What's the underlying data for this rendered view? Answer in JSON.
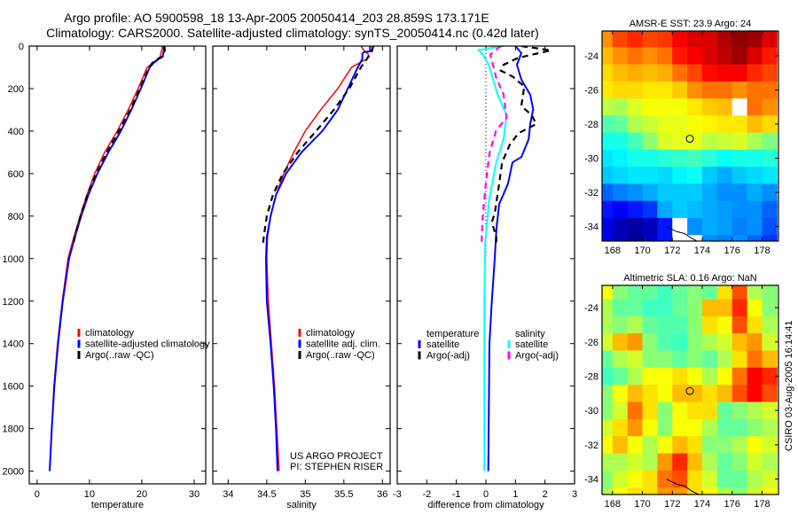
{
  "header": {
    "title_line1": "Argo profile: AO 5900598_18 13-Apr-2005 20050414_203 28.859S 173.171E",
    "title_line2": "Climatology: CARS2000. Satellite-adjusted climatology: synTS_20050414.nc (0.42d later)"
  },
  "stamp": "CSIRO 03-Aug-2005 16:14:41",
  "colors": {
    "red": "#ff0000",
    "blue": "#0000ff",
    "black": "#000000",
    "cyan": "#00ffff",
    "magenta": "#ff00ff"
  },
  "chart_data": [
    {
      "type": "line",
      "id": "temperature",
      "xlabel": "temperature",
      "ylabel": "",
      "xlim": [
        -1.5,
        32.2
      ],
      "ylim": [
        0,
        2060
      ],
      "y_reversed": true,
      "xticks": [
        0,
        10,
        20,
        30
      ],
      "xtick_labels": [
        "0",
        "10",
        "20",
        "30"
      ],
      "yticks": [
        0,
        200,
        400,
        600,
        800,
        1000,
        1200,
        1400,
        1600,
        1800,
        2000
      ],
      "ytick_labels": [
        "0",
        "200",
        "400",
        "600",
        "800",
        "1000",
        "1200",
        "1400",
        "1600",
        "1800",
        "2000"
      ],
      "legend": {
        "entries": [
          "climatology",
          "satellite-adjusted climatology",
          "Argo(..raw -QC)"
        ]
      },
      "series": [
        {
          "name": "climatology",
          "color": "#ff0000",
          "dash": false,
          "depth": [
            0,
            10,
            50,
            70,
            100,
            200,
            300,
            400,
            500,
            600,
            700,
            800,
            900,
            1000,
            1200,
            1400,
            1600,
            1800,
            2000
          ],
          "values": [
            23.9,
            23.9,
            23.5,
            22.9,
            21.0,
            19.3,
            17.4,
            15.3,
            12.9,
            11.0,
            9.5,
            8.2,
            7.0,
            5.9,
            4.8,
            3.9,
            3.2,
            2.8,
            2.4
          ]
        },
        {
          "name": "satellite-adjusted climatology",
          "color": "#0000ff",
          "dash": false,
          "depth": [
            0,
            20,
            50,
            70,
            100,
            200,
            300,
            400,
            500,
            600,
            700,
            800,
            900,
            1000,
            1200,
            1400,
            1600,
            1800,
            2000
          ],
          "values": [
            24.2,
            24.2,
            24.0,
            22.6,
            21.5,
            19.8,
            18.0,
            16.0,
            13.6,
            11.5,
            9.8,
            8.4,
            7.2,
            6.1,
            4.9,
            4.0,
            3.3,
            2.8,
            2.4
          ]
        },
        {
          "name": "Argo(..raw -QC)",
          "color": "#000000",
          "dash": true,
          "depth": [
            0,
            20,
            50,
            70,
            100,
            200,
            300,
            400,
            500,
            600,
            700,
            800,
            900,
            940
          ],
          "values": [
            24.3,
            24.4,
            23.8,
            22.3,
            21.4,
            19.6,
            17.8,
            15.6,
            13.3,
            11.3,
            9.6,
            8.3,
            7.2,
            6.8
          ]
        }
      ]
    },
    {
      "type": "line",
      "id": "salinity",
      "xlabel": "salinity",
      "xlim": [
        33.8,
        36.1
      ],
      "ylim": [
        0,
        2060
      ],
      "y_reversed": true,
      "xticks": [
        34,
        34.5,
        35,
        35.5,
        36
      ],
      "xtick_labels": [
        "34",
        "34.5",
        "35",
        "35.5",
        "36"
      ],
      "yticks": [
        0,
        200,
        400,
        600,
        800,
        1000,
        1200,
        1400,
        1600,
        1800,
        2000
      ],
      "legend": {
        "entries": [
          "climatology",
          "satellite adj. clim.",
          "Argo(..raw -QC)"
        ]
      },
      "annotations": [
        "US ARGO PROJECT",
        "PI: STEPHEN RISER"
      ],
      "series": [
        {
          "name": "climatology",
          "color": "#ff0000",
          "dash": false,
          "depth": [
            0,
            20,
            40,
            60,
            100,
            200,
            300,
            400,
            500,
            600,
            700,
            800,
            900,
            1000,
            1200,
            1400,
            1600,
            1800,
            2000
          ],
          "values": [
            35.72,
            35.76,
            35.82,
            35.8,
            35.6,
            35.42,
            35.2,
            35.0,
            34.85,
            34.72,
            34.62,
            34.55,
            34.51,
            34.5,
            34.52,
            34.56,
            34.6,
            34.63,
            34.66
          ]
        },
        {
          "name": "satellite adj. clim.",
          "color": "#0000ff",
          "dash": false,
          "depth": [
            0,
            25,
            28,
            35,
            60,
            100,
            200,
            300,
            400,
            500,
            600,
            700,
            800,
            900,
            1000,
            1200,
            1400,
            1600,
            1800,
            2000
          ],
          "values": [
            35.84,
            35.84,
            35.76,
            35.74,
            35.74,
            35.68,
            35.55,
            35.42,
            35.22,
            34.95,
            34.75,
            34.62,
            34.55,
            34.5,
            34.49,
            34.5,
            34.55,
            34.59,
            34.62,
            34.64
          ]
        },
        {
          "name": "Argo(..raw -QC)",
          "color": "#000000",
          "dash": true,
          "depth": [
            0,
            30,
            60,
            100,
            200,
            300,
            400,
            500,
            600,
            700,
            800,
            900,
            940
          ],
          "values": [
            35.88,
            35.86,
            35.8,
            35.72,
            35.57,
            35.37,
            35.14,
            34.9,
            34.71,
            34.58,
            34.5,
            34.46,
            34.45
          ]
        }
      ]
    },
    {
      "type": "line",
      "id": "difference",
      "xlabel": "difference from climatology",
      "xlim": [
        -3,
        3
      ],
      "ylim": [
        0,
        2060
      ],
      "y_reversed": true,
      "xticks": [
        -3,
        -2,
        -1,
        0,
        1,
        2,
        3
      ],
      "xtick_labels": [
        "-3",
        "-2",
        "-1",
        "0",
        "1",
        "2",
        "3"
      ],
      "yticks": [
        0,
        200,
        400,
        600,
        800,
        1000,
        1200,
        1400,
        1600,
        1800,
        2000
      ],
      "reference_line": 0,
      "legend": {
        "temperature_header": "temperature",
        "salinity_header": "salinity",
        "temperature_entries": [
          "satellite",
          "Argo(-adj)"
        ],
        "salinity_entries": [
          "satellite",
          "Argo(-adj)"
        ]
      },
      "series": [
        {
          "name": "temperature satellite",
          "color": "#0000ff",
          "dash": false,
          "depth": [
            0,
            33,
            88,
            158,
            229,
            297,
            367,
            438,
            522,
            547,
            647,
            743,
            855,
            923,
            1000,
            1200,
            1400,
            2000
          ],
          "values": [
            1.0,
            1.2,
            1.05,
            1.2,
            1.5,
            1.6,
            1.5,
            1.45,
            1.2,
            0.9,
            0.75,
            0.45,
            0.36,
            0.33,
            0.3,
            0.2,
            0.12,
            0.08
          ]
        },
        {
          "name": "temperature Argo(-adj)",
          "color": "#000000",
          "dash": true,
          "depth": [
            0,
            20,
            55,
            88,
            115,
            143,
            190,
            282,
            325,
            367,
            410,
            466,
            547,
            647,
            786,
            828,
            897,
            937
          ],
          "values": [
            1.2,
            2.2,
            1.1,
            0.6,
            0.5,
            0.9,
            1.3,
            1.2,
            1.55,
            1.7,
            1.1,
            0.8,
            0.55,
            0.45,
            0.3,
            0.2,
            0.35,
            0.35
          ]
        },
        {
          "name": "salinity satellite",
          "color": "#00ffff",
          "dash": false,
          "depth": [
            0,
            18,
            40,
            88,
            229,
            325,
            438,
            547,
            716,
            923,
            1200,
            1600,
            2000
          ],
          "values": [
            0.6,
            -0.25,
            -0.1,
            0.1,
            0.4,
            0.7,
            0.6,
            0.35,
            0.12,
            -0.02,
            -0.05,
            -0.05,
            -0.05
          ]
        },
        {
          "name": "salinity Argo(-adj)",
          "color": "#ff00ff",
          "dash": true,
          "depth": [
            0,
            40,
            150,
            229,
            339,
            395,
            506,
            647,
            786,
            937
          ],
          "values": [
            0.5,
            0.15,
            0.35,
            0.6,
            0.7,
            0.35,
            0.12,
            0.0,
            -0.1,
            -0.15
          ]
        }
      ]
    },
    {
      "type": "heatmap",
      "id": "sst_map",
      "title": "AMSR-E SST: 23.9 Argo: 24",
      "xlim": [
        167.3,
        179.1
      ],
      "ylim": [
        -22.55,
        -34.85
      ],
      "xticks": [
        168,
        170,
        172,
        174,
        176,
        178
      ],
      "xtick_labels": [
        "168",
        "170",
        "172",
        "174",
        "176",
        "178"
      ],
      "yticks": [
        -24,
        -26,
        -28,
        -30,
        -32,
        -34
      ],
      "ytick_labels": [
        "-24",
        "-26",
        "-28",
        "-30",
        "-32",
        "-34"
      ],
      "lons": [
        167.5,
        168.5,
        169.5,
        170.5,
        171.5,
        172.5,
        173.5,
        174.5,
        175.5,
        176.5,
        177.5,
        178.5
      ],
      "lats": [
        -23,
        -24,
        -25,
        -26,
        -27,
        -28,
        -29,
        -30,
        -31,
        -32,
        -33,
        -34,
        -35
      ],
      "color_range": [
        18.8,
        25.6
      ],
      "argo_position": {
        "lon": 173.171,
        "lat": -28.859
      },
      "values": [
        [
          23.8,
          24.3,
          24.5,
          24.3,
          24.4,
          24.8,
          25.0,
          25.0,
          25.3,
          25.5,
          25.4,
          25.0
        ],
        [
          23.5,
          23.8,
          24.0,
          23.8,
          24.0,
          24.6,
          24.8,
          25.0,
          25.2,
          25.4,
          25.0,
          24.6
        ],
        [
          23.3,
          23.5,
          23.6,
          23.5,
          23.6,
          24.0,
          24.3,
          24.7,
          24.8,
          24.8,
          24.5,
          24.3
        ],
        [
          23.2,
          23.3,
          23.3,
          23.2,
          23.2,
          23.4,
          23.8,
          24.0,
          24.0,
          23.8,
          24.0,
          24.0
        ],
        [
          22.6,
          22.5,
          22.8,
          23.0,
          23.0,
          23.0,
          23.2,
          23.4,
          23.5,
          null,
          24.0,
          23.8
        ],
        [
          21.9,
          22.0,
          22.5,
          22.7,
          22.9,
          22.9,
          23.0,
          23.1,
          23.2,
          23.2,
          23.5,
          23.3
        ],
        [
          21.5,
          21.5,
          21.8,
          22.3,
          22.8,
          22.9,
          22.9,
          22.6,
          22.7,
          22.8,
          22.5,
          22.2
        ],
        [
          21.2,
          21.3,
          21.5,
          21.5,
          21.6,
          21.7,
          21.8,
          21.6,
          21.4,
          21.5,
          21.5,
          21.6
        ],
        [
          21.0,
          21.1,
          21.2,
          21.2,
          21.1,
          21.3,
          21.4,
          21.0,
          20.8,
          21.0,
          21.1,
          21.2
        ],
        [
          20.3,
          20.5,
          20.6,
          20.8,
          21.0,
          21.0,
          21.0,
          20.8,
          20.6,
          20.6,
          20.8,
          20.6
        ],
        [
          19.8,
          19.6,
          19.8,
          20.0,
          20.8,
          21.0,
          20.9,
          20.8,
          20.7,
          20.6,
          20.6,
          20.3
        ],
        [
          19.5,
          19.2,
          19.0,
          19.2,
          19.8,
          null,
          20.6,
          20.8,
          20.7,
          20.5,
          20.6,
          20.2
        ],
        [
          19.6,
          19.2,
          18.9,
          19.3,
          19.8,
          null,
          null,
          20.6,
          20.5,
          20.6,
          20.3,
          20.0
        ]
      ]
    },
    {
      "type": "heatmap",
      "id": "sla_map",
      "title": "Altimetric SLA: 0.16 Argo: NaN",
      "xlim": [
        167.3,
        179.1
      ],
      "ylim": [
        -22.7,
        -34.9
      ],
      "xticks": [
        168,
        170,
        172,
        174,
        176,
        178
      ],
      "xtick_labels": [
        "168",
        "170",
        "172",
        "174",
        "176",
        "178"
      ],
      "yticks": [
        -24,
        -26,
        -28,
        -30,
        -32,
        -34
      ],
      "ytick_labels": [
        "-24",
        "-26",
        "-28",
        "-30",
        "-32",
        "-34"
      ],
      "lons": [
        167.5,
        168.5,
        169.5,
        170.5,
        171.5,
        172.5,
        173.5,
        174.5,
        175.5,
        176.5,
        177.5,
        178.5
      ],
      "lats": [
        -23,
        -24,
        -25,
        -26,
        -27,
        -28,
        -29,
        -30,
        -31,
        -32,
        -33,
        -34,
        -35
      ],
      "color_range": [
        -0.2,
        0.35
      ],
      "argo_position": {
        "lon": 173.171,
        "lat": -28.859
      },
      "values": [
        [
          0.14,
          0.08,
          0.06,
          0.06,
          0.04,
          0.06,
          0.08,
          0.06,
          0.16,
          0.24,
          0.1,
          0.08
        ],
        [
          0.1,
          0.06,
          0.06,
          0.04,
          0.04,
          0.06,
          0.08,
          0.18,
          0.18,
          0.26,
          0.14,
          0.08
        ],
        [
          0.1,
          0.08,
          0.1,
          0.06,
          0.05,
          0.05,
          0.08,
          0.16,
          0.14,
          0.24,
          0.16,
          0.1
        ],
        [
          0.12,
          0.18,
          0.2,
          0.08,
          0.05,
          0.04,
          0.08,
          0.1,
          0.12,
          0.18,
          0.2,
          0.12
        ],
        [
          0.06,
          0.1,
          0.12,
          0.08,
          0.08,
          0.06,
          0.08,
          0.06,
          0.1,
          0.16,
          0.22,
          0.18
        ],
        [
          0.04,
          0.06,
          0.1,
          0.14,
          0.14,
          0.16,
          0.14,
          0.1,
          0.14,
          0.22,
          0.28,
          0.26
        ],
        [
          0.08,
          0.14,
          0.18,
          0.16,
          0.14,
          0.18,
          0.18,
          0.16,
          0.18,
          0.24,
          0.28,
          0.24
        ],
        [
          0.08,
          0.12,
          0.22,
          0.16,
          0.08,
          0.14,
          0.16,
          0.16,
          0.06,
          0.08,
          0.1,
          0.12
        ],
        [
          0.12,
          0.16,
          0.2,
          0.14,
          0.08,
          0.14,
          0.14,
          0.1,
          0.06,
          0.06,
          0.08,
          0.1
        ],
        [
          0.14,
          0.18,
          0.14,
          0.1,
          0.14,
          0.18,
          0.16,
          0.08,
          0.08,
          0.1,
          0.14,
          0.12
        ],
        [
          0.1,
          0.1,
          0.12,
          0.1,
          0.2,
          0.26,
          0.18,
          0.1,
          0.06,
          0.08,
          0.12,
          0.1
        ],
        [
          0.08,
          0.12,
          0.14,
          0.16,
          0.22,
          0.24,
          0.16,
          0.12,
          0.06,
          0.06,
          0.1,
          0.12
        ],
        [
          0.1,
          0.14,
          0.16,
          0.16,
          0.2,
          0.2,
          0.16,
          0.14,
          0.1,
          0.08,
          0.12,
          0.14
        ]
      ]
    }
  ]
}
